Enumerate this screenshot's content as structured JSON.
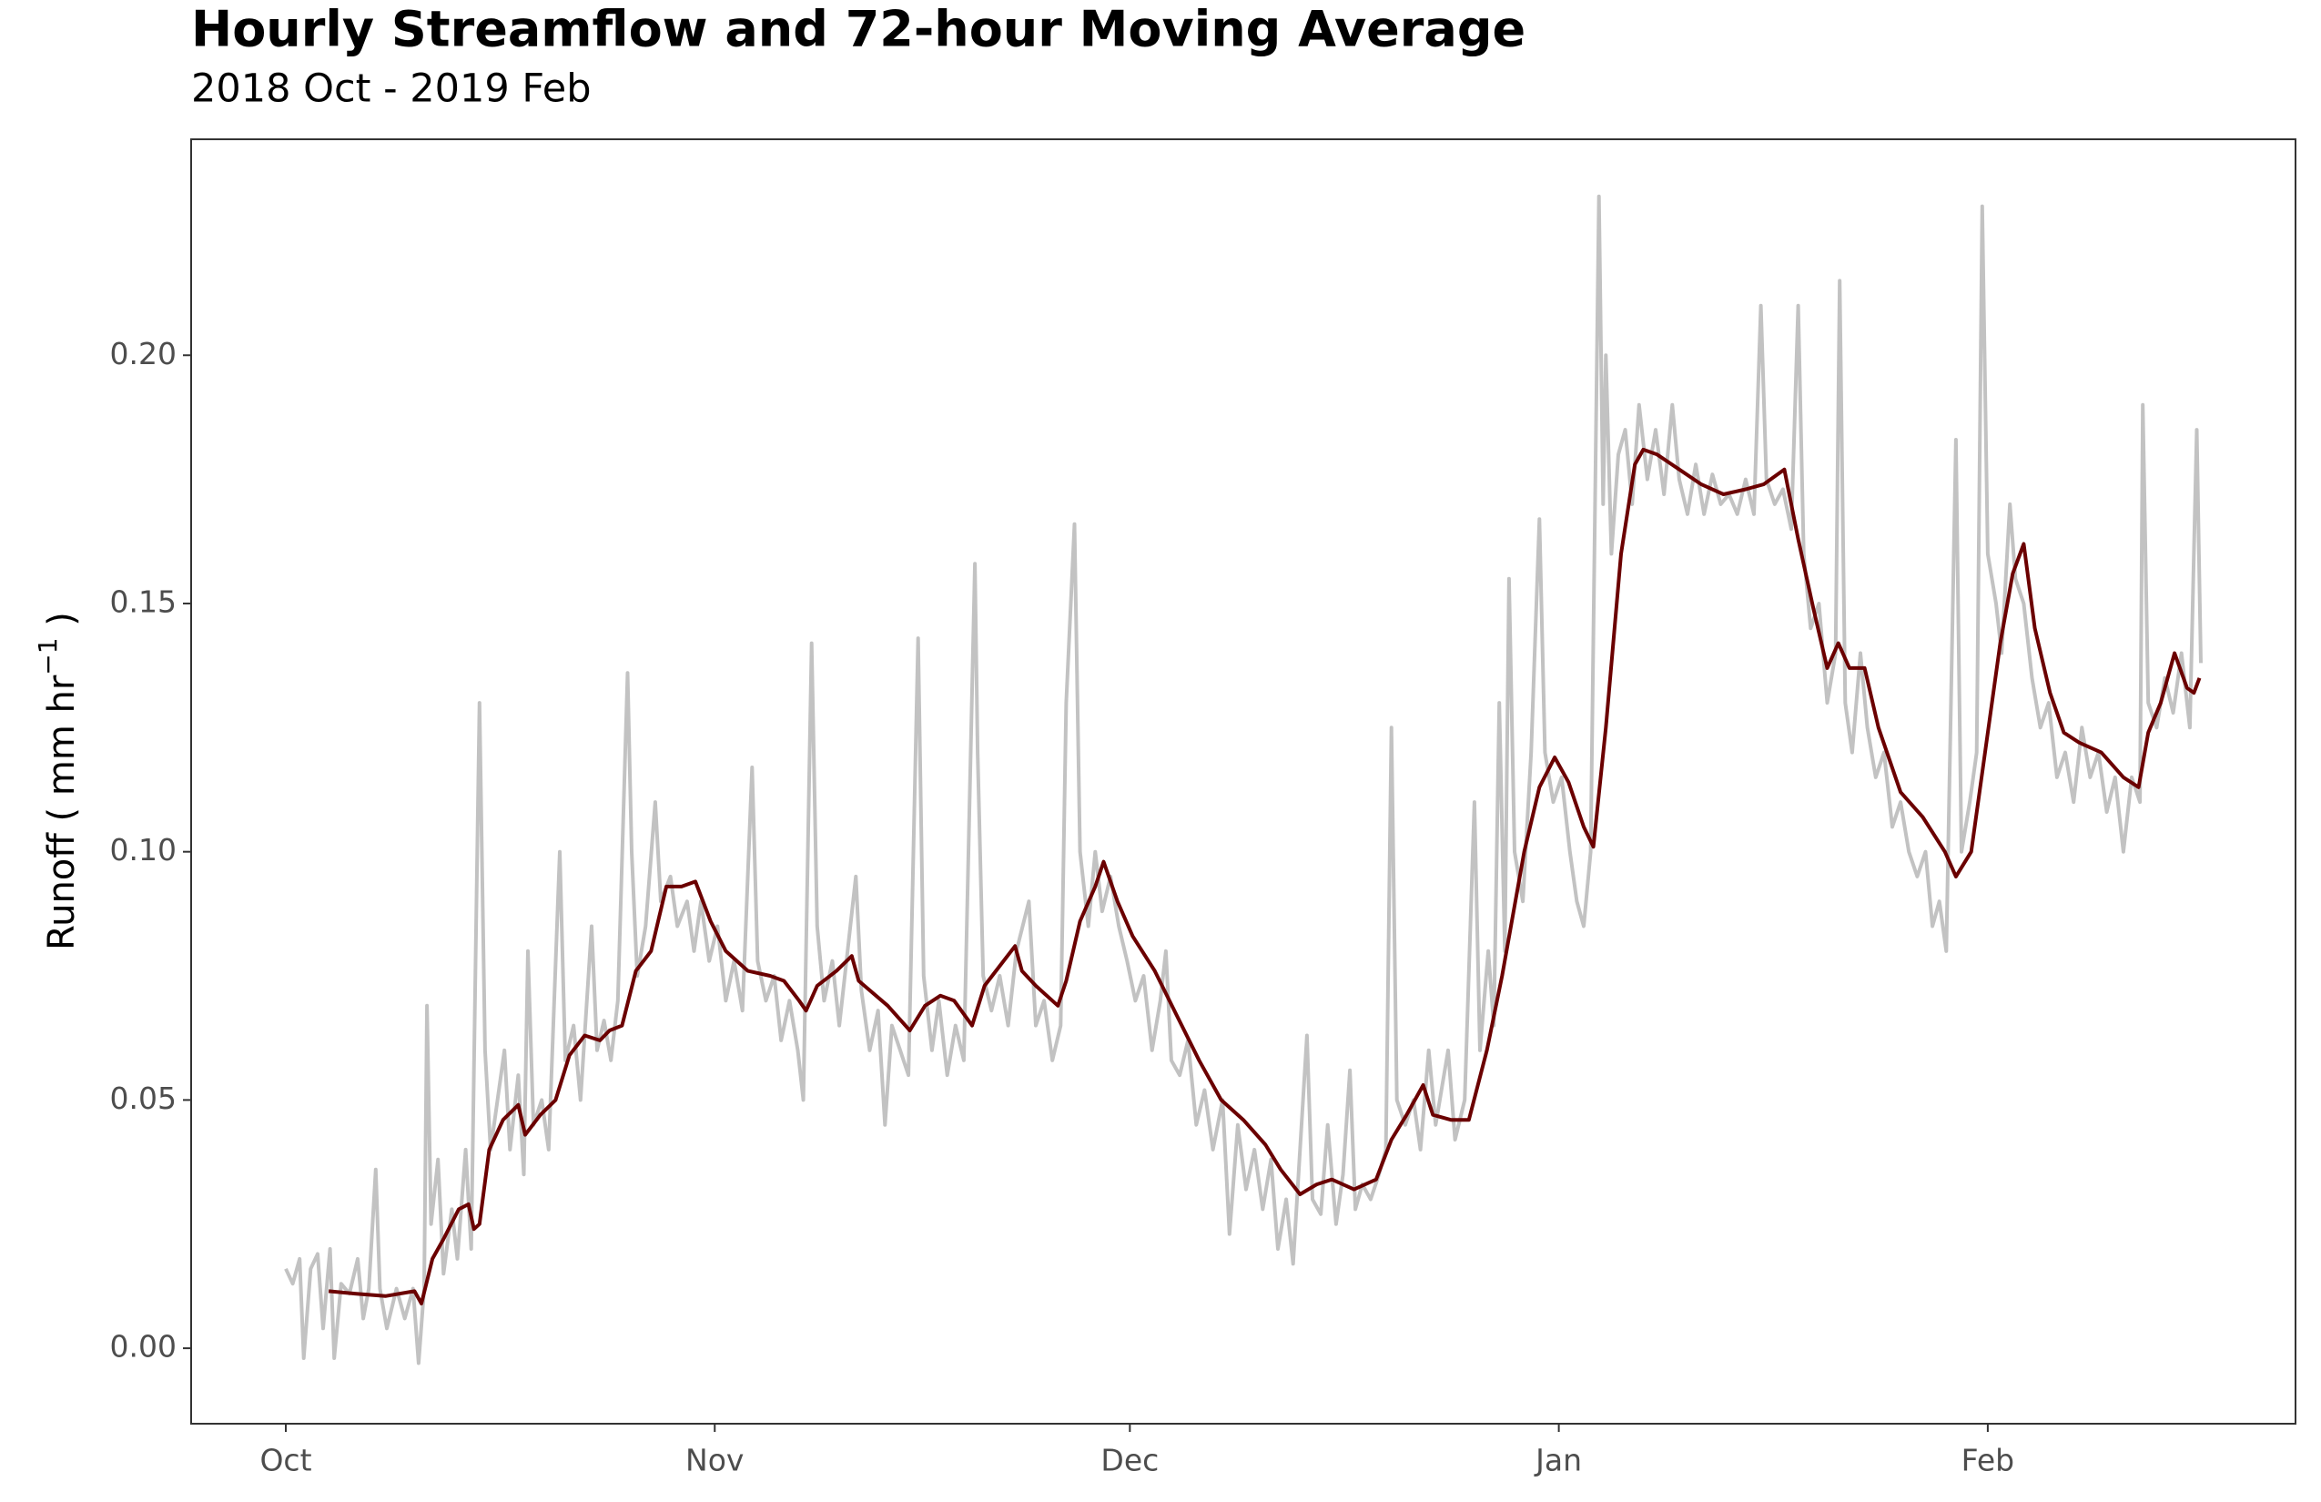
{
  "chart_data": {
    "type": "line",
    "title": "Hourly Streamflow and 72-hour Moving Average",
    "subtitle": "2018 Oct - 2019 Feb",
    "ylabel": [
      "Runoff ( mm hr",
      "−1",
      " )"
    ],
    "xlim": [
      -6.84,
      145.24
    ],
    "xticks": [
      {
        "value": 0,
        "label": "Oct"
      },
      {
        "value": 31,
        "label": "Nov"
      },
      {
        "value": 61,
        "label": "Dec"
      },
      {
        "value": 92,
        "label": "Jan"
      },
      {
        "value": 123,
        "label": "Feb"
      }
    ],
    "ylim": [
      -0.0152,
      0.2435
    ],
    "yticks": [
      {
        "value": 0,
        "label": "0.00"
      },
      {
        "value": 0.05,
        "label": "0.05"
      },
      {
        "value": 0.1,
        "label": "0.10"
      },
      {
        "value": 0.15,
        "label": "0.15"
      },
      {
        "value": 0.2,
        "label": "0.20"
      }
    ],
    "grid": false,
    "series": [
      {
        "color": "#c2c2c2",
        "x": [
          0,
          0.5,
          1,
          1.3,
          1.8,
          2.3,
          2.7,
          3.2,
          3.5,
          4,
          4.6,
          5.2,
          5.6,
          6,
          6.5,
          6.8,
          7.3,
          8,
          8.6,
          9.2,
          9.6,
          10,
          10.2,
          10.5,
          11,
          11.4,
          12,
          12.4,
          13,
          13.4,
          14,
          14.4,
          14.8,
          15.3,
          15.8,
          16.2,
          16.8,
          17.2,
          17.5,
          17.9,
          18.5,
          19,
          19.8,
          20.2,
          20.8,
          21.3,
          22.1,
          22.5,
          23,
          23.5,
          24,
          24.7,
          25,
          25.4,
          26,
          26.7,
          27.1,
          27.8,
          28.3,
          29,
          29.5,
          30,
          30.6,
          31.2,
          31.8,
          32.4,
          33,
          33.7,
          34.1,
          34.7,
          35.3,
          35.8,
          36.4,
          37,
          37.4,
          38,
          38.4,
          38.9,
          39.5,
          40,
          40.6,
          41.2,
          41.6,
          42.2,
          42.8,
          43.3,
          43.8,
          44.4,
          45,
          45.7,
          46.1,
          46.7,
          47.2,
          47.8,
          48.4,
          49,
          49.8,
          50,
          50.4,
          51,
          51.6,
          52.2,
          52.8,
          53.7,
          54.2,
          54.8,
          55.4,
          56,
          56.4,
          57,
          57.4,
          58,
          58.5,
          59,
          59.6,
          60.2,
          60.8,
          61.4,
          62,
          62.6,
          63.2,
          63.6,
          64,
          64.6,
          65.2,
          65.8,
          66.4,
          67,
          67.7,
          68.2,
          68.8,
          69.4,
          70,
          70.6,
          71.2,
          71.7,
          72.3,
          72.8,
          73.3,
          73.8,
          74.2,
          74.8,
          75.3,
          75.9,
          76.4,
          76.9,
          77.3,
          77.8,
          78.4,
          79,
          79.5,
          79.9,
          80.3,
          80.9,
          81.5,
          82,
          82.6,
          83.1,
          84,
          84.5,
          85.2,
          85.9,
          86.3,
          86.9,
          87.3,
          87.7,
          88.1,
          88.4,
          88.8,
          89.4,
          90,
          90.6,
          91,
          91.6,
          92.2,
          92.8,
          93.3,
          93.8,
          94.3,
          94.9,
          95.2,
          95.4,
          95.8,
          96.3,
          96.8,
          97.3,
          97.8,
          98.4,
          99,
          99.6,
          100.2,
          100.7,
          101.3,
          101.9,
          102.5,
          103.1,
          103.7,
          104.3,
          104.9,
          105.5,
          106.1,
          106.6,
          107,
          107.6,
          108.2,
          108.8,
          109.3,
          109.7,
          110.2,
          110.8,
          111.4,
          112,
          112.3,
          112.7,
          113.2,
          113.8,
          114.3,
          114.9,
          115.5,
          116.1,
          116.7,
          117.3,
          117.9,
          118.5,
          119,
          119.5,
          120,
          120.7,
          121.1,
          121.7,
          122.2,
          122.6,
          123,
          123.6,
          124,
          124.6,
          125,
          125.6,
          126.2,
          126.8,
          127.4,
          128,
          128.6,
          129.2,
          129.8,
          130.4,
          131,
          131.6,
          132.2,
          132.8,
          133.4,
          134,
          134.2,
          134.6,
          135.2,
          135.8,
          136.4,
          137,
          137.6,
          138.1,
          138.4
        ],
        "values": [
          0.016,
          0.013,
          0.018,
          -0.002,
          0.016,
          0.019,
          0.004,
          0.02,
          -0.002,
          0.013,
          0.011,
          0.018,
          0.006,
          0.012,
          0.036,
          0.012,
          0.004,
          0.012,
          0.006,
          0.012,
          -0.003,
          0.012,
          0.069,
          0.025,
          0.038,
          0.015,
          0.028,
          0.018,
          0.04,
          0.02,
          0.13,
          0.06,
          0.04,
          0.05,
          0.06,
          0.04,
          0.055,
          0.035,
          0.08,
          0.045,
          0.05,
          0.04,
          0.1,
          0.058,
          0.065,
          0.05,
          0.085,
          0.06,
          0.066,
          0.058,
          0.07,
          0.136,
          0.1,
          0.075,
          0.085,
          0.11,
          0.09,
          0.095,
          0.085,
          0.09,
          0.08,
          0.09,
          0.078,
          0.085,
          0.07,
          0.078,
          0.068,
          0.117,
          0.078,
          0.07,
          0.075,
          0.062,
          0.07,
          0.06,
          0.05,
          0.142,
          0.085,
          0.07,
          0.078,
          0.065,
          0.08,
          0.095,
          0.072,
          0.06,
          0.068,
          0.045,
          0.065,
          0.06,
          0.055,
          0.143,
          0.075,
          0.06,
          0.07,
          0.055,
          0.065,
          0.058,
          0.158,
          0.12,
          0.075,
          0.068,
          0.075,
          0.065,
          0.08,
          0.09,
          0.065,
          0.07,
          0.058,
          0.065,
          0.13,
          0.166,
          0.1,
          0.085,
          0.1,
          0.088,
          0.095,
          0.085,
          0.078,
          0.07,
          0.075,
          0.06,
          0.07,
          0.08,
          0.058,
          0.055,
          0.062,
          0.045,
          0.052,
          0.04,
          0.05,
          0.023,
          0.045,
          0.032,
          0.04,
          0.028,
          0.038,
          0.02,
          0.03,
          0.017,
          0.04,
          0.063,
          0.03,
          0.027,
          0.045,
          0.025,
          0.035,
          0.056,
          0.028,
          0.033,
          0.03,
          0.035,
          0.04,
          0.125,
          0.05,
          0.045,
          0.05,
          0.04,
          0.06,
          0.045,
          0.06,
          0.042,
          0.05,
          0.11,
          0.06,
          0.08,
          0.065,
          0.13,
          0.08,
          0.155,
          0.1,
          0.09,
          0.12,
          0.167,
          0.12,
          0.11,
          0.115,
          0.1,
          0.09,
          0.085,
          0.1,
          0.232,
          0.17,
          0.2,
          0.16,
          0.18,
          0.185,
          0.17,
          0.19,
          0.175,
          0.185,
          0.172,
          0.19,
          0.175,
          0.168,
          0.178,
          0.168,
          0.176,
          0.17,
          0.172,
          0.168,
          0.175,
          0.168,
          0.21,
          0.175,
          0.17,
          0.173,
          0.165,
          0.21,
          0.16,
          0.145,
          0.15,
          0.13,
          0.14,
          0.215,
          0.13,
          0.12,
          0.14,
          0.125,
          0.115,
          0.12,
          0.105,
          0.11,
          0.1,
          0.095,
          0.1,
          0.085,
          0.09,
          0.08,
          0.183,
          0.1,
          0.11,
          0.12,
          0.23,
          0.16,
          0.15,
          0.14,
          0.17,
          0.155,
          0.15,
          0.135,
          0.125,
          0.13,
          0.115,
          0.12,
          0.11,
          0.125,
          0.115,
          0.12,
          0.108,
          0.115,
          0.1,
          0.115,
          0.11,
          0.19,
          0.13,
          0.125,
          0.135,
          0.128,
          0.14,
          0.125,
          0.185,
          0.138
        ]
      },
      {
        "color": "#6b0000",
        "x": [
          3.1,
          5,
          7.2,
          9.3,
          9.8,
          10.6,
          11.4,
          12.5,
          13.2,
          13.6,
          14,
          14.7,
          15.7,
          16.8,
          17.3,
          18.4,
          19.5,
          20.5,
          21.6,
          22.7,
          23.4,
          24.3,
          25.3,
          26.4,
          27.5,
          28.6,
          29.6,
          30.7,
          31.8,
          33.4,
          35,
          36,
          37.1,
          37.6,
          38.4,
          39.8,
          40.9,
          41.4,
          43.5,
          45.1,
          46.2,
          47.3,
          48.3,
          49.6,
          50.5,
          51.6,
          52.7,
          53.2,
          54.2,
          55.8,
          56.4,
          57.4,
          58.5,
          59.1,
          60.1,
          61.2,
          62.8,
          64.4,
          66,
          67.6,
          69.2,
          70.8,
          71.9,
          73.3,
          74.5,
          75.6,
          77.2,
          78.8,
          79.9,
          81,
          82.2,
          82.9,
          84.2,
          85.5,
          86.8,
          87.9,
          89.5,
          90.6,
          91.7,
          92.7,
          93.8,
          94.5,
          95.4,
          96.5,
          97.5,
          98.1,
          99.1,
          100.7,
          102.3,
          103.9,
          105.5,
          106.8,
          108.3,
          109.3,
          110.4,
          111.4,
          112.2,
          113,
          114.1,
          115.1,
          116.7,
          118.3,
          119.9,
          120.7,
          121.8,
          122.8,
          123.9,
          124.8,
          125.6,
          126.4,
          127.5,
          128.5,
          129.6,
          131.2,
          132.8,
          133.9,
          134.6,
          135.5,
          136.5,
          137.4,
          137.9,
          138.3
        ],
        "values": [
          0.0115,
          0.011,
          0.0105,
          0.0115,
          0.009,
          0.018,
          0.022,
          0.028,
          0.029,
          0.024,
          0.025,
          0.04,
          0.046,
          0.049,
          0.043,
          0.047,
          0.05,
          0.059,
          0.063,
          0.062,
          0.064,
          0.065,
          0.076,
          0.08,
          0.093,
          0.093,
          0.094,
          0.086,
          0.08,
          0.076,
          0.075,
          0.074,
          0.07,
          0.068,
          0.073,
          0.076,
          0.079,
          0.074,
          0.069,
          0.064,
          0.069,
          0.071,
          0.07,
          0.065,
          0.073,
          0.077,
          0.081,
          0.076,
          0.073,
          0.069,
          0.074,
          0.086,
          0.093,
          0.098,
          0.09,
          0.083,
          0.076,
          0.067,
          0.058,
          0.05,
          0.046,
          0.041,
          0.036,
          0.031,
          0.033,
          0.034,
          0.032,
          0.034,
          0.042,
          0.047,
          0.053,
          0.047,
          0.046,
          0.046,
          0.06,
          0.075,
          0.1,
          0.113,
          0.119,
          0.114,
          0.105,
          0.101,
          0.125,
          0.16,
          0.178,
          0.181,
          0.18,
          0.177,
          0.174,
          0.172,
          0.173,
          0.174,
          0.177,
          0.163,
          0.149,
          0.137,
          0.142,
          0.137,
          0.137,
          0.125,
          0.112,
          0.107,
          0.1,
          0.095,
          0.1,
          0.12,
          0.142,
          0.156,
          0.162,
          0.145,
          0.132,
          0.124,
          0.122,
          0.12,
          0.115,
          0.113,
          0.124,
          0.13,
          0.14,
          0.133,
          0.132,
          0.135
        ]
      }
    ]
  }
}
